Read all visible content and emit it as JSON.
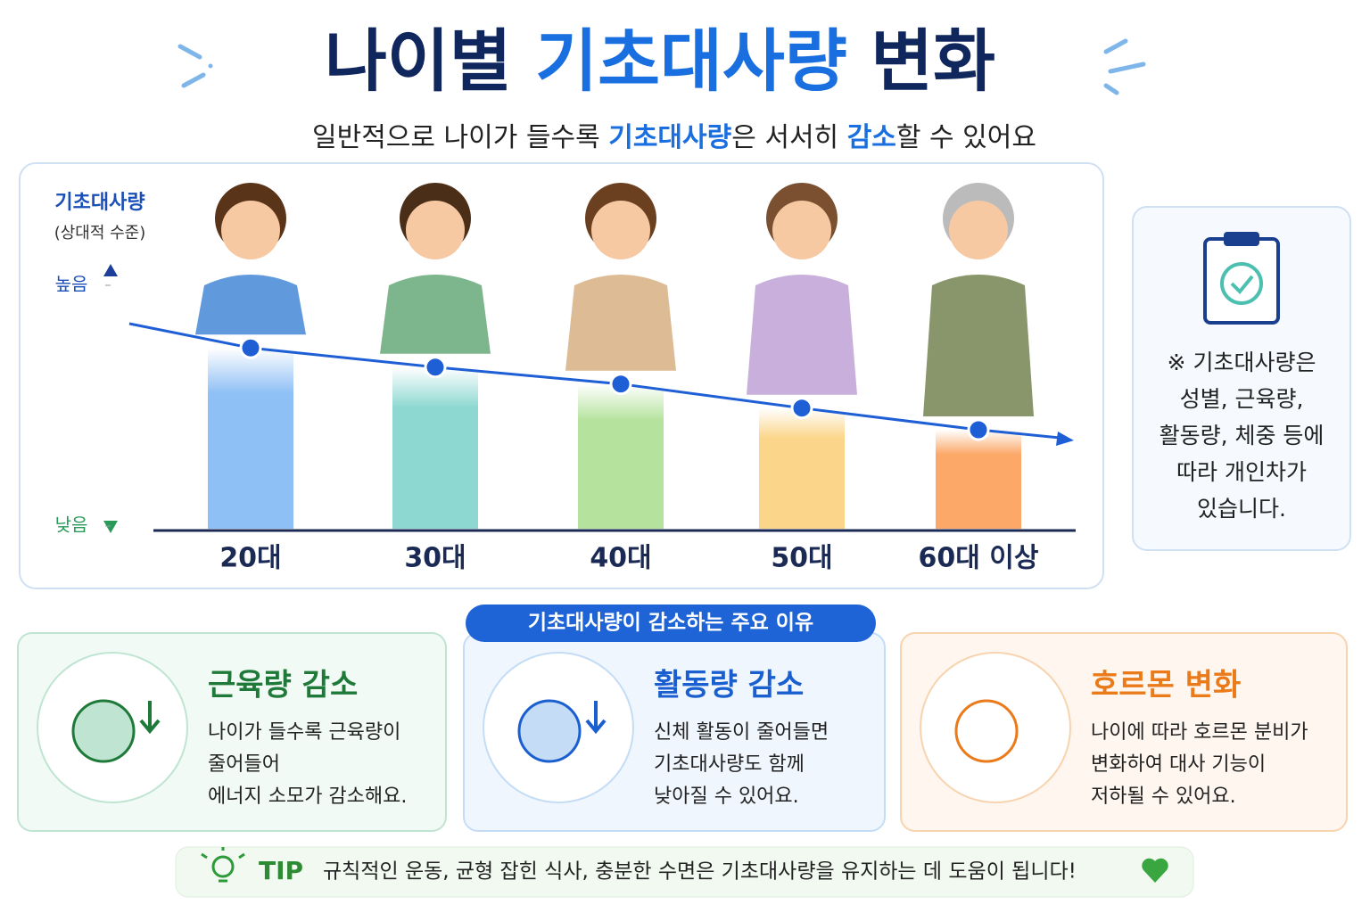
{
  "header": {
    "title_parts": [
      "나이별 ",
      "기초대사량",
      " 변화"
    ],
    "subtitle_parts": [
      "일반적으로 나이가 들수록 ",
      "기초대사량",
      "은 서서히 ",
      "감소",
      "할 수 있어요"
    ]
  },
  "chart_data": {
    "type": "bar",
    "y_label": "기초대사량",
    "y_sublabel": "(상대적 수준)",
    "categories": [
      "20대",
      "30대",
      "40대",
      "50대",
      "60대 이상"
    ],
    "values": [
      74,
      66,
      59,
      49,
      40
    ],
    "colors": [
      "#8fc0f5",
      "#8ed8d2",
      "#b5e39e",
      "#fbd68a",
      "#fba868"
    ],
    "line_color": "#1f5fd6",
    "ylim": [
      0,
      100
    ],
    "yticks": [
      {
        "value": 0,
        "label": "낮음"
      },
      {
        "value": 100,
        "label": "높음"
      }
    ]
  },
  "note": {
    "lines": [
      "※ 기초대사량은",
      "성별, 근육량,",
      "활동량, 체중 등에",
      "따라 개인차가",
      "있습니다."
    ]
  },
  "reasons": {
    "badge": "기초대사량이 감소하는 주요 이유",
    "items": [
      {
        "title": "근육량 감소",
        "lines": [
          "나이가 들수록 근육량이",
          "줄어들어",
          "에너지 소모가 감소해요."
        ]
      },
      {
        "title": "활동량 감소",
        "lines": [
          "신체 활동이 줄어들면",
          "기초대사량도 함께",
          "낮아질 수 있어요."
        ]
      },
      {
        "title": "호르몬 변화",
        "lines": [
          "나이에 따라 호르몬 분비가",
          "변화하여 대사 기능이",
          "저하될 수 있어요."
        ]
      }
    ]
  },
  "tip": {
    "label": "TIP",
    "text": "규칙적인 운동, 균형 잡힌 식사, 충분한 수면은 기초대사량을 유지하는 데 도움이 됩니다!"
  }
}
